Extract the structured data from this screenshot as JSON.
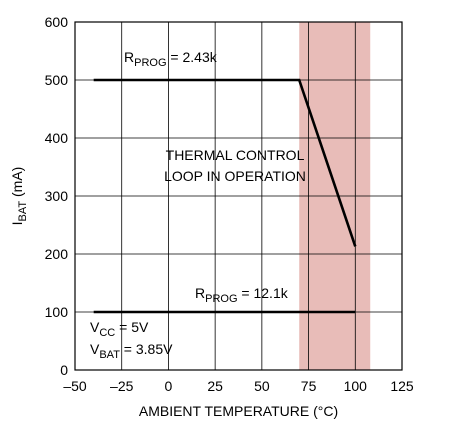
{
  "chart_data": {
    "type": "line",
    "xlabel": {
      "main": "AMBIENT TEMPERATURE (°C)"
    },
    "ylabel": {
      "main": "I",
      "sub": "BAT",
      "tail": " (mA)"
    },
    "xlim": [
      -50,
      125
    ],
    "xticks": [
      {
        "value": -50,
        "label": "–50"
      },
      {
        "value": -25,
        "label": "–25"
      },
      0,
      25,
      50,
      75,
      100,
      125
    ],
    "ylim": [
      0,
      600
    ],
    "yticks": [
      0,
      100,
      200,
      300,
      400,
      500,
      600
    ],
    "grid": true,
    "color": "#000000",
    "series": [
      {
        "x": [
          -40,
          70,
          100
        ],
        "values": [
          500,
          500,
          213
        ]
      },
      {
        "x": [
          -40,
          100
        ],
        "values": [
          100,
          100
        ]
      }
    ],
    "shaded_region": {
      "xrange": [
        70,
        108
      ],
      "color": "#e8bcb8"
    },
    "annotations": [
      {
        "main": "R",
        "sub": "PROG",
        "tail": " = 2.43k"
      },
      {
        "main": "THERMAL CONTROL"
      },
      {
        "main": "LOOP IN OPERATION"
      },
      {
        "main": "R",
        "sub": "PROG",
        "tail": " = 12.1k"
      },
      {
        "main": "V",
        "sub": "CC",
        "tail": " = 5V"
      },
      {
        "main": "V",
        "sub": "BAT",
        "tail": " = 3.85V"
      }
    ]
  }
}
